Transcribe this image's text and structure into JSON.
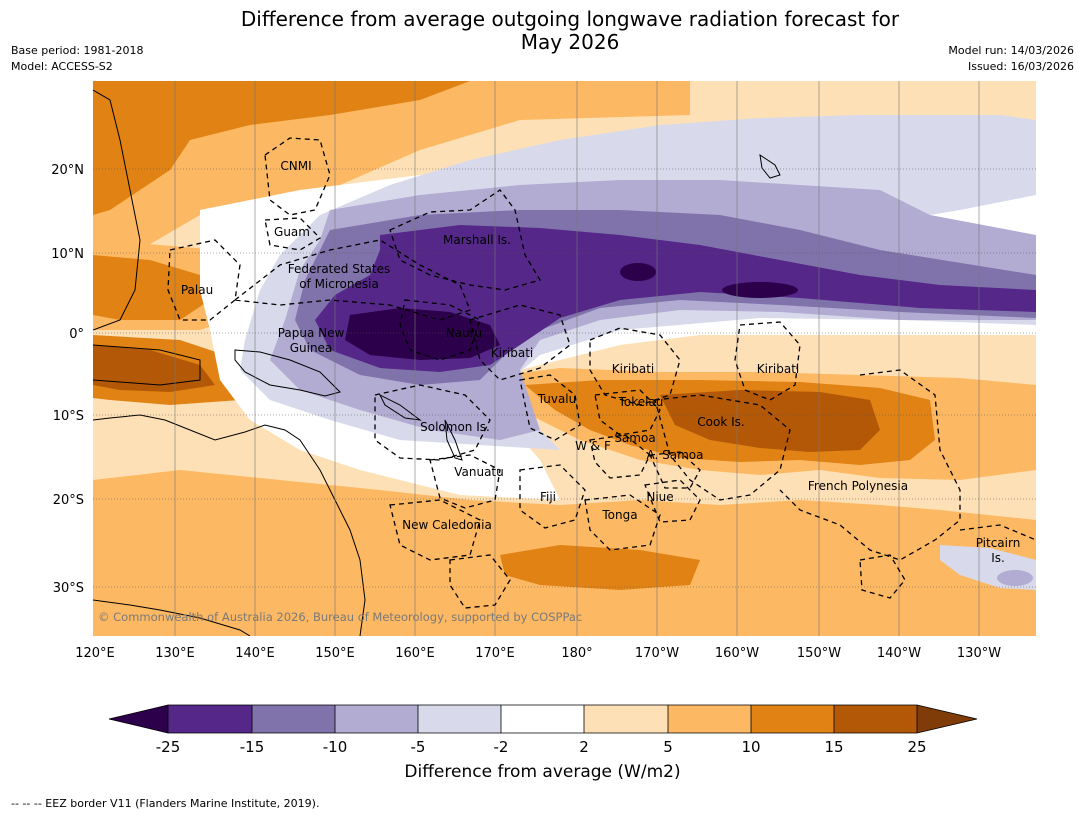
{
  "title_line1": "Difference from average outgoing longwave radiation forecast for",
  "title_line2": "May 2026",
  "base_period": "Base period: 1981-2018",
  "model": "Model: ACCESS-S2",
  "model_run": "Model run: 14/03/2026",
  "issued": "Issued: 16/03/2026",
  "lat_labels": [
    "20°N",
    "10°N",
    "0°",
    "10°S",
    "20°S",
    "30°S"
  ],
  "lon_labels": [
    "120°E",
    "130°E",
    "140°E",
    "150°E",
    "160°E",
    "170°E",
    "180°",
    "170°W",
    "160°W",
    "150°W",
    "140°W",
    "130°W"
  ],
  "regions": {
    "cnmi": "CNMI",
    "guam": "Guam",
    "marshall": "Marshall Is.",
    "fsm1": "Federated States",
    "fsm2": "of Micronesia",
    "palau": "Palau",
    "png1": "Papua New",
    "png2": "Guinea",
    "nauru": "Nauru",
    "kiribati_w": "Kiribati",
    "kiribati_c": "Kiribati",
    "kiribati_e": "Kiribati",
    "tuvalu": "Tuvalu",
    "tokelau": "Tokelau",
    "cook": "Cook Is.",
    "solomon": "Solomon Is.",
    "samoa": "Samoa",
    "wf": "W & F",
    "asamoa": "A. Samoa",
    "vanuatu": "Vanuatu",
    "fiji": "Fiji",
    "niue": "Niue",
    "frenchpoly": "French Polynesia",
    "tonga": "Tonga",
    "newcal": "New Caledonia",
    "pitcairn1": "Pitcairn",
    "pitcairn2": "Is."
  },
  "copyright": "© Commonwealth of Australia 2026, Bureau of Meteorology, supported by COSPPac",
  "colorbar": {
    "label": "Difference from average (W/m2)",
    "ticks": [
      "-25",
      "-15",
      "-10",
      "-5",
      "-2",
      "2",
      "5",
      "10",
      "15",
      "25"
    ],
    "colors": [
      "#2d004b",
      "#542788",
      "#8073ac",
      "#b2abd2",
      "#d8daeb",
      "#ffffff",
      "#fee0b6",
      "#fdb863",
      "#e08214",
      "#b35806",
      "#7f3b08"
    ]
  },
  "footnote": "--  --  -- EEZ border V11 (Flanders Marine Institute, 2019)."
}
